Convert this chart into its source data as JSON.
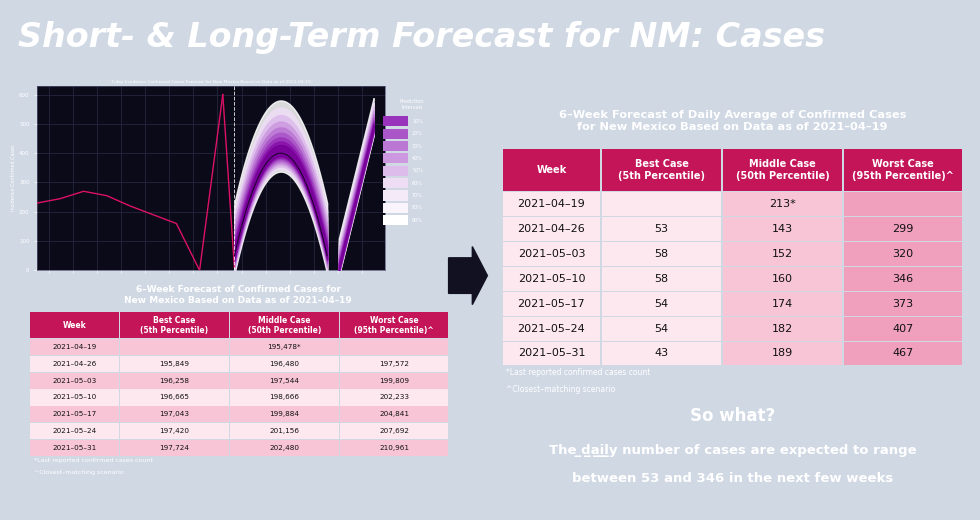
{
  "title": "Short- & Long-Term Forecast for NM: Cases",
  "title_bg": "#1c3f6e",
  "title_color": "white",
  "title_fontsize": 24,
  "bg_color": "#d0d8e4",
  "left_panel_bg": "#111122",
  "left_chart_title": "7-day Incidence Confirmed Cases Forecast for New Mexico Based on Data as of 2021-04-19",
  "left_table_title": "6–Week Forecast of Confirmed Cases for\nNew Mexico Based on Data as of 2021–04–19",
  "left_table_headers": [
    "Week",
    "Best Case\n(5th Percentile)",
    "Middle Case\n(50th Percentile)",
    "Worst Case\n(95th Percentile)^"
  ],
  "left_table_rows": [
    [
      "2021–04–19",
      "",
      "195,478*",
      ""
    ],
    [
      "2021–04–26",
      "195,849",
      "196,480",
      "197,572"
    ],
    [
      "2021–05–03",
      "196,258",
      "197,544",
      "199,809"
    ],
    [
      "2021–05–10",
      "196,665",
      "198,666",
      "202,233"
    ],
    [
      "2021–05–17",
      "197,043",
      "199,884",
      "204,841"
    ],
    [
      "2021–05–24",
      "197,420",
      "201,156",
      "207,692"
    ],
    [
      "2021–05–31",
      "197,724",
      "202,480",
      "210,961"
    ]
  ],
  "left_footnote1": "*Last reported confirmed cases count",
  "left_footnote2": "^Closest–matching scenario",
  "right_table_title": "6–Week Forecast of Daily Average of Confirmed Cases\nfor New Mexico Based on Data as of 2021–04–19",
  "right_table_headers": [
    "Week",
    "Best Case\n(5th Percentile)",
    "Middle Case\n(50th Percentile)",
    "Worst Case\n(95th Percentile)^"
  ],
  "right_table_rows": [
    [
      "2021–04–19",
      "",
      "213*",
      ""
    ],
    [
      "2021–04–26",
      "53",
      "143",
      "299"
    ],
    [
      "2021–05–03",
      "58",
      "152",
      "320"
    ],
    [
      "2021–05–10",
      "58",
      "160",
      "346"
    ],
    [
      "2021–05–17",
      "54",
      "174",
      "373"
    ],
    [
      "2021–05–24",
      "54",
      "182",
      "407"
    ],
    [
      "2021–05–31",
      "43",
      "189",
      "467"
    ]
  ],
  "right_footnote1": "*Last reported confirmed cases count",
  "right_footnote2": "^Closest–matching scenario",
  "so_what_bg": "#be0000",
  "so_what_title": "So what?",
  "header_color": "#c41558",
  "left_row_colors": [
    "#f7c5d5",
    "#fde8ef"
  ],
  "right_row_color_week": "#fde8ef",
  "right_row_color_best": "#fde8ef",
  "right_row_color_mid": "#f7c5d5",
  "right_row_color_worst": "#f0a0bc",
  "right_row_color_1_worst": "#fde8ef",
  "table_bg": "#111122",
  "table_text": "#111111"
}
